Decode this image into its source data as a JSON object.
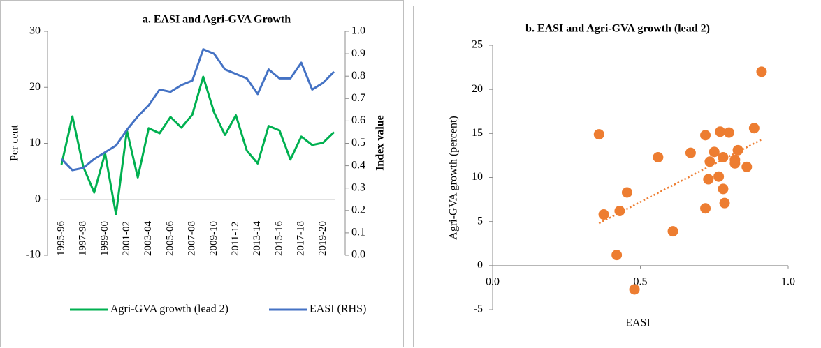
{
  "chart_data": [
    {
      "type": "line",
      "title": "a. EASI and Agri-GVA Growth",
      "categories": [
        "1995-96",
        null,
        "1997-98",
        null,
        "1999-00",
        null,
        "2001-02",
        null,
        "2003-04",
        null,
        "2005-06",
        null,
        "2007-08",
        null,
        "2009-10",
        null,
        "2011-12",
        null,
        "2013-14",
        null,
        "2015-16",
        null,
        "2017-18",
        null,
        "2019-20",
        null
      ],
      "y_label": "Per cent",
      "y2_label": "Index value",
      "ylim": [
        -10,
        30
      ],
      "yticks": [
        -10,
        0,
        10,
        20,
        30
      ],
      "y2lim": [
        0,
        1
      ],
      "y2ticks": [
        {
          "value": 0,
          "label": "0.0"
        },
        {
          "value": 0.1,
          "label": "0.1"
        },
        {
          "value": 0.2,
          "label": "0.2"
        },
        {
          "value": 0.3,
          "label": "0.3"
        },
        {
          "value": 0.4,
          "label": "0.4"
        },
        {
          "value": 0.5,
          "label": "0.5"
        },
        {
          "value": 0.6,
          "label": "0.6"
        },
        {
          "value": 0.7,
          "label": "0.7"
        },
        {
          "value": 0.8,
          "label": "0.8"
        },
        {
          "value": 0.9,
          "label": "0.9"
        },
        {
          "value": 1,
          "label": "1.0"
        }
      ],
      "legend": "bottom",
      "series": [
        {
          "name": "Agri-GVA growth (lead 2)",
          "color": "#00b050",
          "values": [
            6.2,
            14.8,
            5.8,
            1.2,
            8.2,
            -2.7,
            12.3,
            3.9,
            12.7,
            11.8,
            14.7,
            12.8,
            15.1,
            21.9,
            15.5,
            11.5,
            15.0,
            8.7,
            6.4,
            13.1,
            12.3,
            7.1,
            11.2,
            9.7,
            10.1,
            12.0
          ]
        },
        {
          "name": "EASI (RHS)",
          "color": "#4472c4",
          "axis": "y2",
          "values": [
            0.43,
            0.38,
            0.39,
            0.43,
            0.46,
            0.49,
            0.56,
            0.62,
            0.67,
            0.74,
            0.73,
            0.76,
            0.78,
            0.92,
            0.9,
            0.83,
            0.81,
            0.79,
            0.72,
            0.83,
            0.79,
            0.79,
            0.86,
            0.74,
            0.77,
            0.82
          ]
        }
      ]
    },
    {
      "type": "scatter",
      "title": "b. EASI and Agri-GVA growth (lead 2)",
      "x_label": "EASI",
      "y_label": "Agri-GVA growth (percent)",
      "xlim": [
        0,
        1
      ],
      "xticks": [
        {
          "value": 0,
          "label": "0.0"
        },
        {
          "value": 0.5,
          "label": "0.5"
        },
        {
          "value": 1,
          "label": "1.0"
        }
      ],
      "ylim": [
        -5,
        25
      ],
      "yticks": [
        -5,
        0,
        5,
        10,
        15,
        20,
        25
      ],
      "color": "#ed7d31",
      "x": [
        0.36,
        0.376,
        0.42,
        0.43,
        0.455,
        0.48,
        0.56,
        0.61,
        0.67,
        0.72,
        0.72,
        0.73,
        0.735,
        0.75,
        0.765,
        0.77,
        0.78,
        0.78,
        0.785,
        0.8,
        0.82,
        0.82,
        0.83,
        0.86,
        0.885,
        0.91
      ],
      "values": [
        14.9,
        5.8,
        1.2,
        6.2,
        8.3,
        -2.7,
        12.3,
        3.9,
        12.8,
        6.5,
        14.8,
        9.8,
        11.8,
        12.9,
        10.1,
        15.2,
        12.3,
        8.7,
        7.1,
        15.1,
        12.0,
        11.6,
        13.1,
        11.2,
        15.6,
        22.0
      ],
      "trendline": {
        "x": [
          0.36,
          0.91
        ],
        "values": [
          4.8,
          14.3
        ],
        "style": "dotted"
      }
    }
  ]
}
